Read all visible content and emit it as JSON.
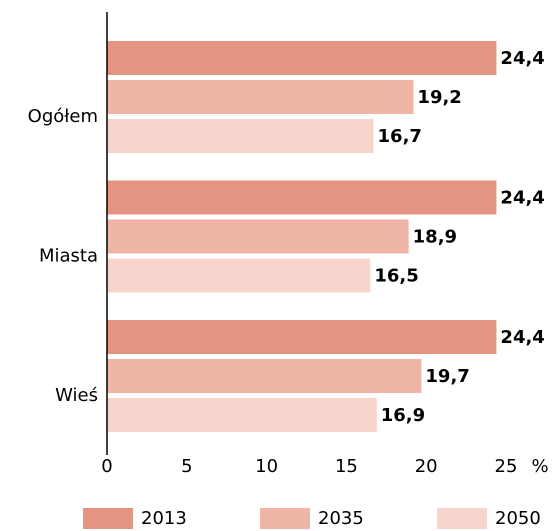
{
  "chart_data": {
    "type": "barh",
    "categories": [
      "Ogółem",
      "Miasta",
      "Wieś"
    ],
    "series": [
      {
        "name": "2013",
        "color": "#e49582",
        "values": [
          24.4,
          24.4,
          24.4
        ],
        "value_labels": [
          "24,4",
          "24,4",
          "24,4"
        ]
      },
      {
        "name": "2035",
        "color": "#efb5a6",
        "values": [
          19.2,
          18.9,
          19.7
        ],
        "value_labels": [
          "19,2",
          "18,9",
          "19,7"
        ]
      },
      {
        "name": "2050",
        "color": "#f7d5cd",
        "values": [
          16.7,
          16.5,
          16.9
        ],
        "value_labels": [
          "16,7",
          "16,5",
          "16,9"
        ]
      }
    ],
    "xlabel": "%",
    "xlim": [
      0,
      25
    ],
    "xticks": [
      0,
      5,
      10,
      15,
      20,
      25
    ]
  }
}
